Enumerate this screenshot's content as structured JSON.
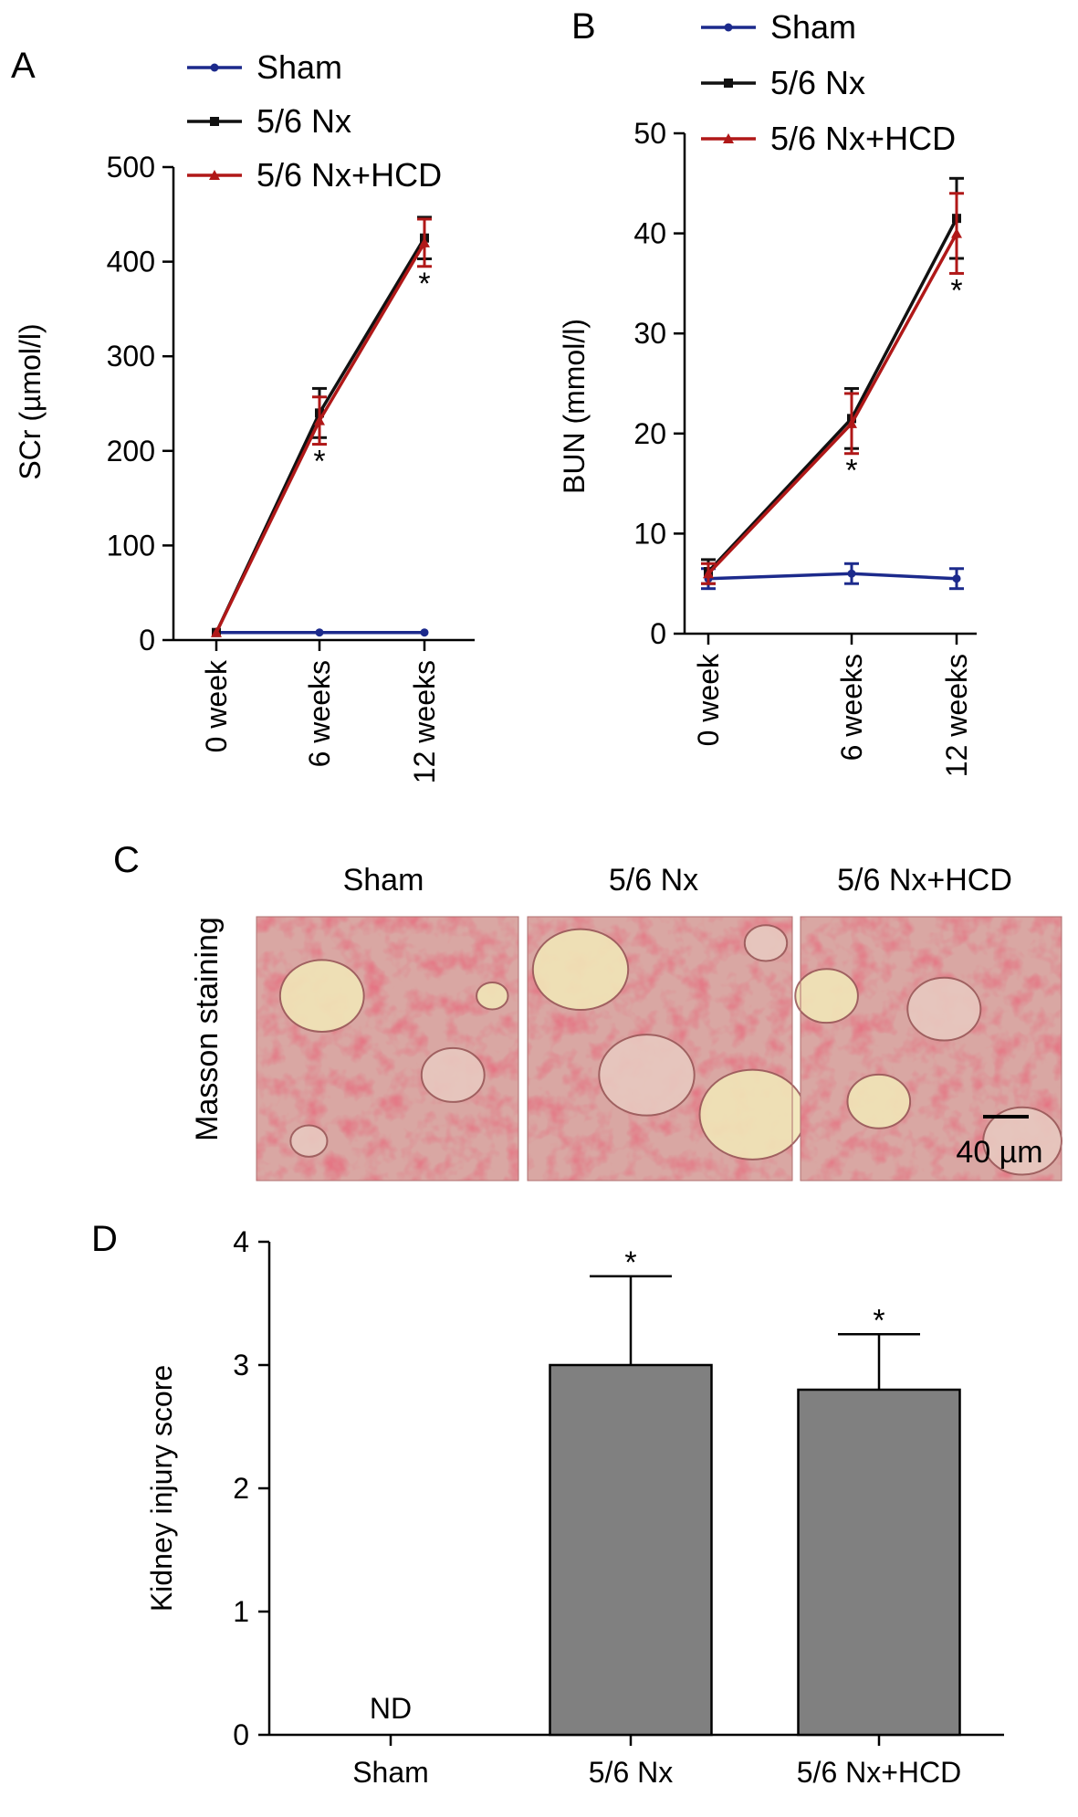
{
  "colors": {
    "sham": "#1c2a8c",
    "nx": "#111111",
    "nx_hcd": "#b01818",
    "bar_fill": "#808080",
    "stain_bg": "#d9a7a3",
    "stain_red": "#c2263a",
    "stain_pale": "#f1e6b8"
  },
  "panels": {
    "a": "A",
    "b": "B",
    "c": "C",
    "d": "D"
  },
  "chart_data": [
    {
      "type": "line",
      "panel": "A",
      "categories": [
        "0 week",
        "6 weeks",
        "12 weeks"
      ],
      "ylabel": "SCr (µmol/l)",
      "ylim": [
        0,
        500
      ],
      "yticks": [
        0,
        100,
        200,
        300,
        400,
        500
      ],
      "legend": [
        "Sham",
        "5/6 Nx",
        "5/6 Nx+HCD"
      ],
      "legend_position": "top-right",
      "series": [
        {
          "name": "Sham",
          "values": [
            8,
            8,
            8
          ],
          "errors": [
            0,
            0,
            0
          ],
          "marker": "circle"
        },
        {
          "name": "5/6 Nx",
          "values": [
            8,
            240,
            425
          ],
          "errors": [
            0,
            26,
            22
          ],
          "marker": "square"
        },
        {
          "name": "5/6 Nx+HCD",
          "values": [
            8,
            232,
            420
          ],
          "errors": [
            0,
            25,
            25
          ],
          "marker": "triangle"
        }
      ],
      "annotations": [
        {
          "category": "6 weeks",
          "text": "*"
        },
        {
          "category": "12 weeks",
          "text": "*"
        }
      ]
    },
    {
      "type": "line",
      "panel": "B",
      "categories": [
        "0 week",
        "6 weeks",
        "12 weeks"
      ],
      "ylabel": "BUN (mmol/l)",
      "ylim": [
        0,
        50
      ],
      "yticks": [
        0,
        10,
        20,
        30,
        40,
        50
      ],
      "legend": [
        "Sham",
        "5/6 Nx",
        "5/6 Nx+HCD"
      ],
      "legend_position": "top",
      "series": [
        {
          "name": "Sham",
          "values": [
            5.5,
            6.0,
            5.5
          ],
          "errors": [
            1.0,
            1.0,
            1.0
          ],
          "marker": "circle"
        },
        {
          "name": "5/6 Nx",
          "values": [
            6.2,
            21.5,
            41.5
          ],
          "errors": [
            1.2,
            3.0,
            4.0
          ],
          "marker": "square"
        },
        {
          "name": "5/6 Nx+HCD",
          "values": [
            6.0,
            21.0,
            40.0
          ],
          "errors": [
            1.0,
            3.0,
            4.0
          ],
          "marker": "triangle"
        }
      ],
      "annotations": [
        {
          "category": "6 weeks",
          "text": "*"
        },
        {
          "category": "12 weeks",
          "text": "*"
        }
      ]
    },
    {
      "type": "bar",
      "panel": "D",
      "categories": [
        "Sham",
        "5/6 Nx",
        "5/6 Nx+HCD"
      ],
      "values": [
        0,
        3.0,
        2.8
      ],
      "errors": [
        0,
        0.72,
        0.45
      ],
      "value_labels": [
        "ND",
        "",
        ""
      ],
      "annotations": [
        "",
        "*",
        "*"
      ],
      "ylabel": "Kidney injury score",
      "ylim": [
        0,
        4
      ],
      "yticks": [
        0,
        1,
        2,
        3,
        4
      ]
    }
  ],
  "panel_c": {
    "row_label": "Masson staining",
    "images": [
      "Sham",
      "5/6 Nx",
      "5/6 Nx+HCD"
    ],
    "scale_bar": "40 µm"
  }
}
